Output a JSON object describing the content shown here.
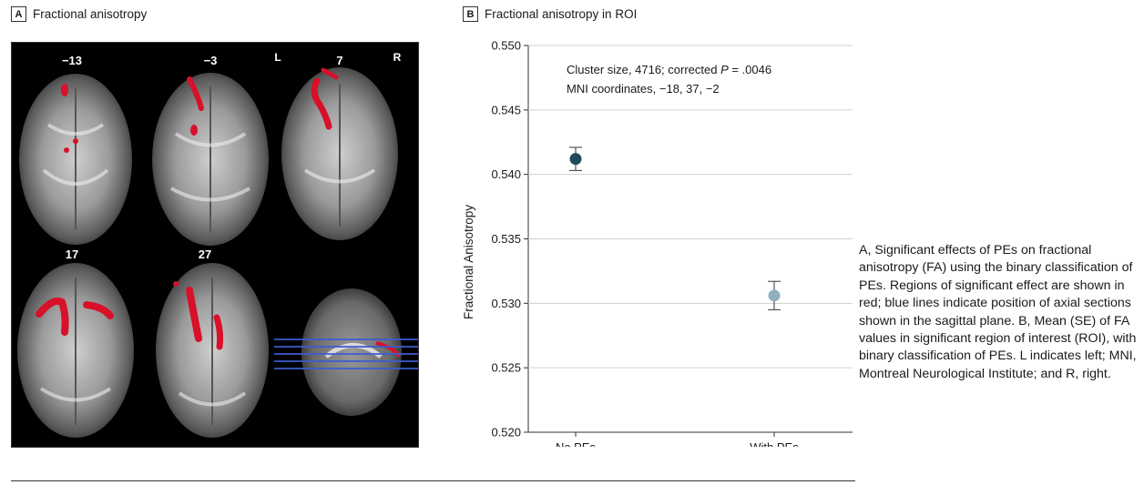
{
  "panel_a": {
    "letter": "A",
    "title": "Fractional anisotropy",
    "slice_labels": [
      "−13",
      "−3",
      "7",
      "17",
      "27"
    ],
    "orientation_left": "L",
    "orientation_right": "R"
  },
  "panel_b": {
    "letter": "B",
    "title": "Fractional anisotropy in ROI",
    "annotation_line1": "Cluster size, 4716; corrected ",
    "annotation_p": "P",
    "annotation_line1_end": " = .0046",
    "annotation_line2": "MNI coordinates, −18, 37, −2"
  },
  "chart_data": {
    "type": "scatter",
    "title": "Fractional anisotropy in ROI",
    "xlabel": "",
    "ylabel": "Fractional Anisotropy",
    "categories": [
      "No PEs",
      "With PEs"
    ],
    "values": [
      0.5412,
      0.5306
    ],
    "errors": [
      0.0009,
      0.0011
    ],
    "colors": [
      "#1f4a57",
      "#8fb0bc"
    ],
    "ylim": [
      0.52,
      0.55
    ],
    "yticks": [
      "0.520",
      "0.525",
      "0.530",
      "0.535",
      "0.540",
      "0.545",
      "0.550"
    ],
    "grid": true
  },
  "caption": "A, Significant effects of PEs on fractional anisotropy (FA) using the binary classification of PEs. Regions of significant effect are shown in red; blue lines indicate position of axial sections shown in the sagittal plane. B, Mean (SE) of FA values in significant region of interest (ROI), with binary classification of PEs. L indicates left; MNI, Montreal Neurological Institute; and R, right."
}
